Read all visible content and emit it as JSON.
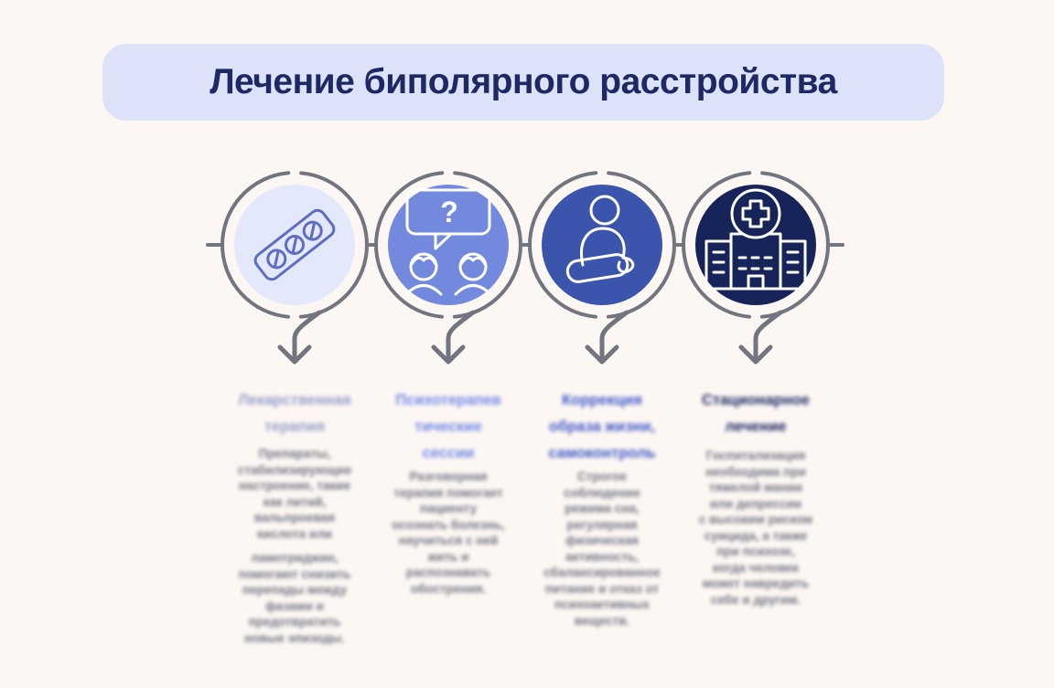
{
  "page": {
    "background": "#fdf7f4",
    "body_text_color": "#6e7380"
  },
  "title": {
    "text": "Лечение биполярного расстройства",
    "box_color": "#dce3f8",
    "text_color": "#1d2965"
  },
  "decoration": {
    "ring_color": "#70757f",
    "arrow_color": "#70757f"
  },
  "columns": [
    {
      "name": "medication",
      "icon": "pill-blister-icon",
      "circle_color": "#e3e8fa",
      "icon_color": "#5d6dc1",
      "header_color": "#939cc8",
      "header_lines": [
        "Лекарственная",
        "терапия"
      ],
      "body_lines": [
        "Препараты,",
        "стабилизирующие",
        "настроение, такие",
        "как литий,",
        "вальпроевая",
        "кислота или",
        "",
        "ламотриджин,",
        "помогают снизить",
        "перепады между",
        "фазами и",
        "предотвратить",
        "новые эпизоды."
      ]
    },
    {
      "name": "psychotherapy",
      "icon": "counseling-icon",
      "circle_color": "#7289de",
      "icon_color": "#ffffff",
      "header_color": "#6e86e6",
      "header_lines": [
        "Психотерапев",
        "тические",
        "сессии"
      ],
      "body_lines": [
        "Разговорная",
        "терапия помогает",
        "пациенту",
        "осознать болезнь,",
        "научиться с ней",
        "жить и",
        "распознавать",
        "обострения."
      ]
    },
    {
      "name": "lifestyle",
      "icon": "meditation-icon",
      "circle_color": "#3c55ac",
      "icon_color": "#ffffff",
      "header_color": "#4059c8",
      "header_lines": [
        "Коррекция",
        "образа жизни,",
        "самоконтроль"
      ],
      "body_lines": [
        "Строгое",
        "соблюдение",
        "режима сна,",
        "регулярная",
        "физическая",
        "активность,",
        "сбалансированное",
        "питание и отказ от",
        "психоактивных",
        "веществ."
      ]
    },
    {
      "name": "inpatient",
      "icon": "hospital-icon",
      "circle_color": "#172459",
      "icon_color": "#ffffff",
      "header_color": "#1d2a63",
      "header_lines": [
        "Стационарное",
        "лечение"
      ],
      "body_lines": [
        "Госпитализация",
        "необходима при",
        "тяжелой мании",
        "или депрессии",
        "с высоким риском",
        "суицида, а также",
        "при психозе,",
        "когда человек",
        "может навредить",
        "себе и другим."
      ]
    }
  ]
}
